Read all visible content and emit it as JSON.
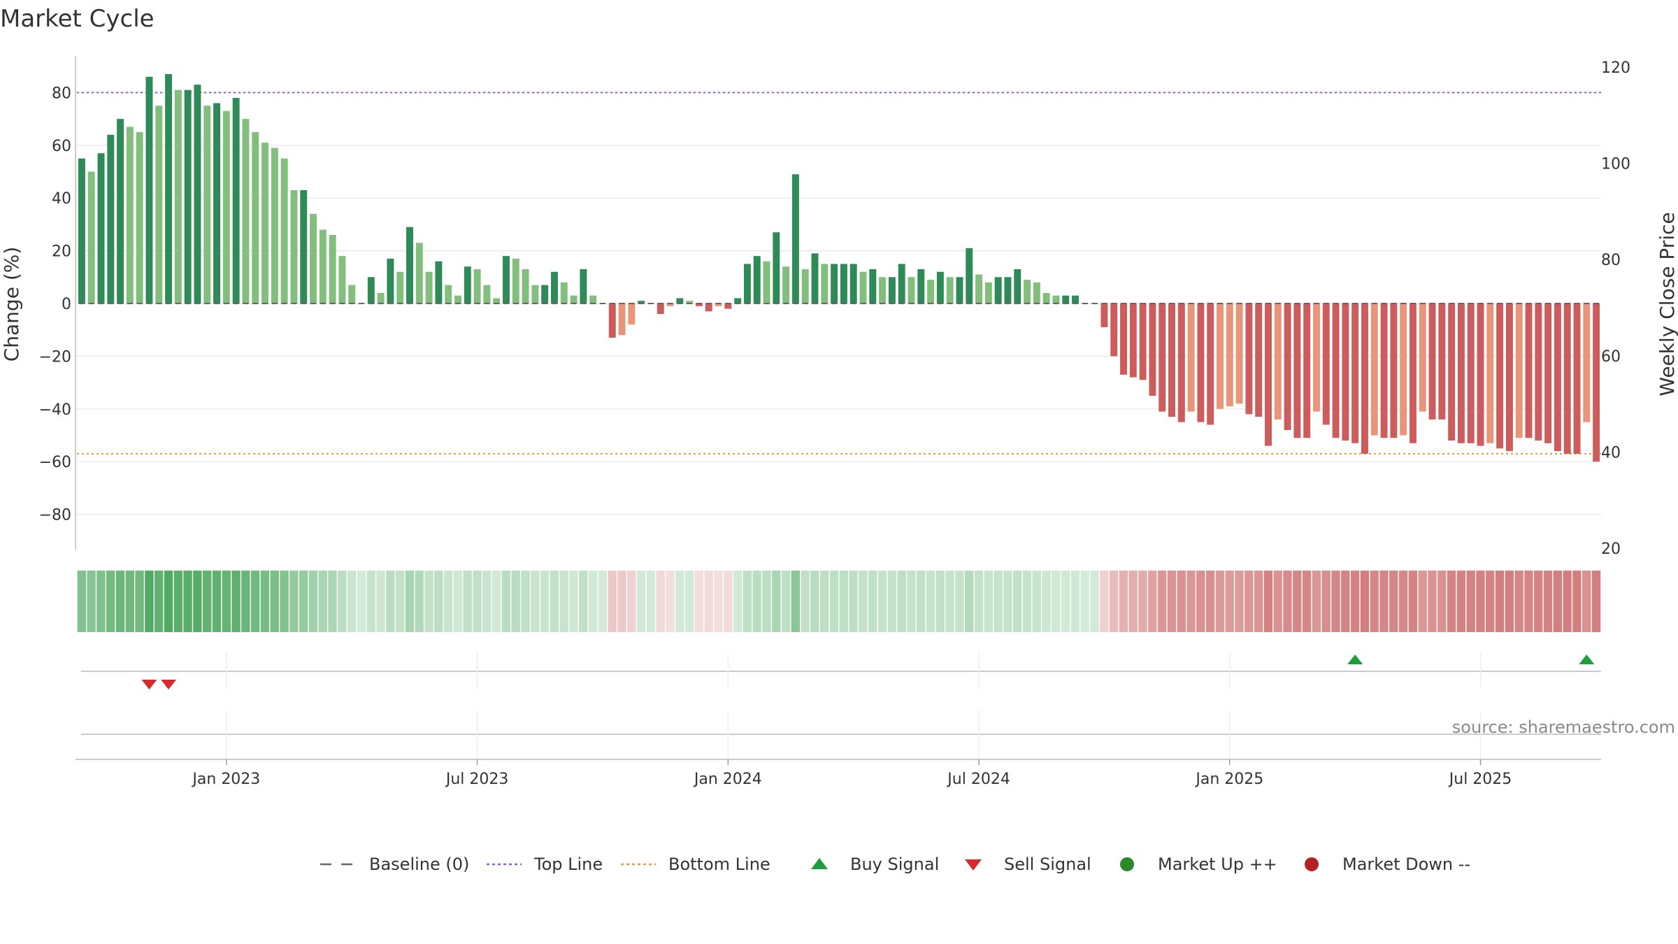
{
  "chart_data": {
    "type": "bar",
    "title": "Market Cycle",
    "ylabel": "Change (%)",
    "y2label": "Weekly Close Price",
    "ylim": [
      -95,
      95
    ],
    "y2lim": [
      20,
      120
    ],
    "yticks": [
      80,
      60,
      40,
      20,
      0,
      -20,
      -40,
      -60,
      -80
    ],
    "ytick_labels": [
      "80",
      "60",
      "40",
      "20",
      "0",
      "−20",
      "−40",
      "−60",
      "−80"
    ],
    "y2ticks": [
      120,
      100,
      80,
      60,
      40,
      20
    ],
    "y2tick_labels": [
      "120",
      "100",
      "80",
      "60",
      "40",
      "20"
    ],
    "xticks": [
      {
        "index": 15,
        "label": "Jan 2023"
      },
      {
        "index": 41,
        "label": "Jul 2023"
      },
      {
        "index": 67,
        "label": "Jan 2024"
      },
      {
        "index": 93,
        "label": "Jul 2024"
      },
      {
        "index": 119,
        "label": "Jan 2025"
      },
      {
        "index": 145,
        "label": "Jul 2025"
      }
    ],
    "top_line": 80,
    "bottom_line": -57,
    "weekly_change": [
      55,
      50,
      57,
      64,
      70,
      67,
      65,
      86,
      75,
      87,
      81,
      81,
      83,
      75,
      76,
      73,
      78,
      70,
      65,
      61,
      59,
      55,
      43,
      43,
      34,
      28,
      26,
      18,
      7,
      0,
      10,
      4,
      17,
      12,
      29,
      23,
      12,
      16,
      7,
      3,
      14,
      13,
      7,
      2,
      18,
      17,
      13,
      7,
      7,
      12,
      8,
      3,
      13,
      3,
      0,
      -13,
      -12,
      -8,
      1,
      0,
      -4,
      -1,
      2,
      1,
      -1,
      -3,
      -1,
      -2,
      2,
      15,
      18,
      16,
      27,
      14,
      49,
      13,
      19,
      15,
      15,
      15,
      15,
      12,
      13,
      10,
      10,
      15,
      10,
      13,
      9,
      12,
      10,
      10,
      21,
      11,
      8,
      10,
      10,
      13,
      9,
      8,
      4,
      3,
      3,
      3,
      0,
      0,
      -9,
      -20,
      -27,
      -28,
      -29,
      -35,
      -41,
      -43,
      -45,
      -41,
      -45,
      -46,
      -40,
      -39,
      -38,
      -42,
      -43,
      -54,
      -44,
      -48,
      -51,
      -51,
      -41,
      -46,
      -51,
      -52,
      -53,
      -57,
      -50,
      -51,
      -51,
      -50,
      -53,
      -41,
      -44,
      -44,
      -52,
      -53,
      -53,
      -54,
      -53,
      -55,
      -56,
      -51,
      -51,
      -52,
      -53,
      -56,
      -57,
      -57,
      -45,
      -60
    ],
    "sell_signal_indices": [
      7,
      9
    ],
    "buy_signal_indices": [
      132,
      156
    ],
    "legend": [
      {
        "label": "Baseline (0)",
        "symbol": "dash",
        "color": "#666666"
      },
      {
        "label": "Top Line",
        "symbol": "dotted",
        "color": "#8e5ed1"
      },
      {
        "label": "Bottom Line",
        "symbol": "dotted",
        "color": "#e39a4c"
      },
      {
        "label": "Buy Signal",
        "symbol": "triangle-up",
        "color": "#1e9e3a"
      },
      {
        "label": "Sell Signal",
        "symbol": "triangle-down",
        "color": "#d62a2a"
      },
      {
        "label": "Market Up ++",
        "symbol": "circle",
        "color": "#2a8a2a"
      },
      {
        "label": "Market Down --",
        "symbol": "circle",
        "color": "#b22222"
      }
    ],
    "source": "source: sharemaestro.com",
    "colors": {
      "up_strong": "#2e8b57",
      "up_light": "#82bf7c",
      "down_strong": "#cd5c5c",
      "down_light": "#e8967a",
      "top_line": "#8e5ed1",
      "bottom_line": "#e39a4c"
    }
  }
}
